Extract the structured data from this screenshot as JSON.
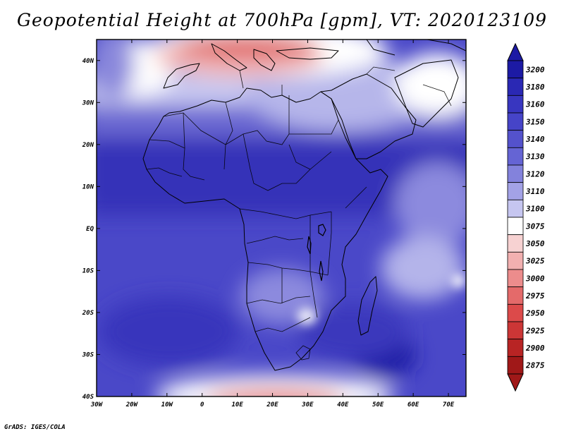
{
  "title": "Geopotential Height at 700hPa [gpm], VT: 2020123109",
  "footer": "GrADS: IGES/COLA",
  "map": {
    "lon_range": [
      -30,
      75
    ],
    "lat_range": [
      -40,
      45
    ],
    "lon_ticks": [
      {
        "lon": -30,
        "label": "30W"
      },
      {
        "lon": -20,
        "label": "20W"
      },
      {
        "lon": -10,
        "label": "10W"
      },
      {
        "lon": 0,
        "label": "0"
      },
      {
        "lon": 10,
        "label": "10E"
      },
      {
        "lon": 20,
        "label": "20E"
      },
      {
        "lon": 30,
        "label": "30E"
      },
      {
        "lon": 40,
        "label": "40E"
      },
      {
        "lon": 50,
        "label": "50E"
      },
      {
        "lon": 60,
        "label": "60E"
      },
      {
        "lon": 70,
        "label": "70E"
      }
    ],
    "lat_ticks": [
      {
        "lat": 40,
        "label": "40N"
      },
      {
        "lat": 30,
        "label": "30N"
      },
      {
        "lat": 20,
        "label": "20N"
      },
      {
        "lat": 10,
        "label": "10N"
      },
      {
        "lat": 0,
        "label": "EQ"
      },
      {
        "lat": -10,
        "label": "10S"
      },
      {
        "lat": -20,
        "label": "20S"
      },
      {
        "lat": -30,
        "label": "30S"
      },
      {
        "lat": -40,
        "label": "40S"
      }
    ]
  },
  "colorbar": {
    "labels": [
      "3200",
      "3180",
      "3160",
      "3150",
      "3140",
      "3130",
      "3120",
      "3110",
      "3100",
      "3075",
      "3050",
      "3025",
      "3000",
      "2975",
      "2950",
      "2925",
      "2900",
      "2875"
    ],
    "colors": [
      "#1c1aa4",
      "#2a28b4",
      "#3836c0",
      "#4644c8",
      "#5452cc",
      "#6564d4",
      "#8382dc",
      "#a3a2e6",
      "#c6c6f0",
      "#ffffff",
      "#f7d2d2",
      "#f2b0b0",
      "#ec8c8c",
      "#e46a6a",
      "#dc4a4a",
      "#cc3636",
      "#b82424",
      "#a01818"
    ]
  }
}
